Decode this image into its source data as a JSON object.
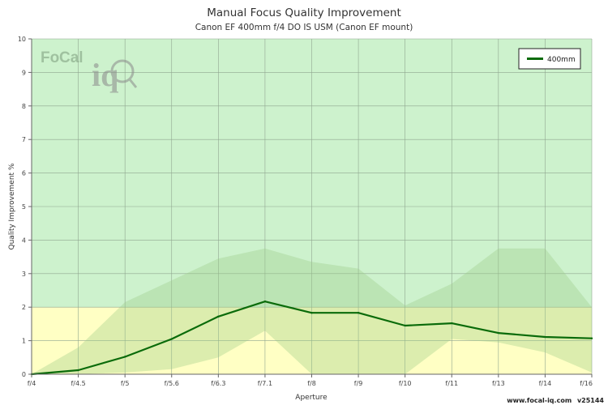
{
  "chart_data": {
    "type": "line",
    "title": "Manual Focus Quality Improvement",
    "subtitle": "Canon EF 400mm f/4 DO IS USM (Canon EF mount)",
    "xlabel": "Aperture",
    "ylabel": "Quality Improvement %",
    "categories": [
      "f/4",
      "f/4.5",
      "f/5",
      "f/5.6",
      "f/6.3",
      "f/7.1",
      "f/8",
      "f/9",
      "f/10",
      "f/11",
      "f/13",
      "f/14",
      "f/16"
    ],
    "ylim": [
      0,
      10
    ],
    "yticks": [
      0,
      1,
      2,
      3,
      4,
      5,
      6,
      7,
      8,
      9,
      10
    ],
    "grid": true,
    "legend_position": "top-right",
    "series": [
      {
        "name": "400mm",
        "values": [
          0,
          0.12,
          0.52,
          1.05,
          1.72,
          2.17,
          1.83,
          1.83,
          1.45,
          1.52,
          1.23,
          1.11,
          1.07
        ],
        "color": "#0a6b0a"
      }
    ],
    "range_band": {
      "upper": [
        0,
        0.8,
        2.15,
        2.8,
        3.45,
        3.75,
        3.35,
        3.15,
        2.05,
        2.7,
        3.75,
        3.75,
        2.0
      ],
      "lower": [
        0,
        0,
        0.05,
        0.15,
        0.5,
        1.3,
        0,
        0,
        0,
        1.05,
        0.95,
        0.65,
        0.05
      ],
      "color": "#9ccc88"
    },
    "zones": [
      {
        "from": 0,
        "to": 2,
        "color": "#ffffc4"
      },
      {
        "from": 2,
        "to": 10,
        "color": "#cdf2cd"
      }
    ]
  },
  "footer": {
    "site": "www.focal-iq.com",
    "version": "v25144"
  },
  "logo": {
    "text_a": "Fo",
    "text_b": "Cal",
    "text_c": "iq"
  }
}
